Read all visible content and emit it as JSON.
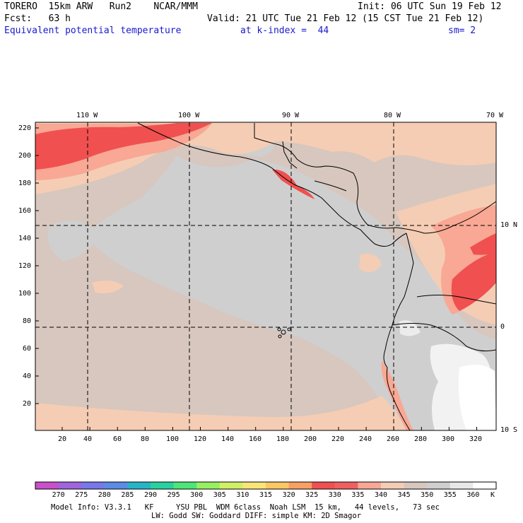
{
  "header": {
    "model": "TORERO  15km ARW   Run2    NCAR/MMM",
    "init": "Init: 06 UTC Sun 19 Feb 12",
    "fcst": "Fcst:   63 h",
    "valid": "Valid: 21 UTC Tue 21 Feb 12 (15 CST Tue 21 Feb 12)",
    "field": "Equivalent potential temperature",
    "level": "at k-index =  44",
    "smooth": "sm= 2"
  },
  "map": {
    "lon_labels": [
      "110 W",
      "100 W",
      "90 W",
      "80 W",
      "70 W"
    ],
    "lat_labels": [
      "10 N",
      "0",
      "10 S"
    ],
    "x_ticks": [
      "20",
      "40",
      "60",
      "80",
      "100",
      "120",
      "140",
      "160",
      "180",
      "200",
      "220",
      "240",
      "260",
      "280",
      "300",
      "320"
    ],
    "y_ticks": [
      "220",
      "200",
      "180",
      "160",
      "140",
      "120",
      "100",
      "80",
      "60",
      "40",
      "20"
    ]
  },
  "colorbar": {
    "levels": [
      "270",
      "275",
      "280",
      "285",
      "290",
      "295",
      "300",
      "305",
      "310",
      "315",
      "320",
      "325",
      "330",
      "335",
      "340",
      "345",
      "350",
      "355",
      "360"
    ],
    "unit": "K",
    "colors": [
      "#c850c8",
      "#a064dc",
      "#7878ec",
      "#5a8ce6",
      "#28b4c8",
      "#28d2a0",
      "#4ee678",
      "#96f060",
      "#d2f064",
      "#fae678",
      "#fac864",
      "#f8a064",
      "#f05050",
      "#f06060",
      "#f8a894",
      "#f5cdb4",
      "#d7c7be",
      "#cfcfcf",
      "#e8e8e8",
      "#ffffff"
    ]
  },
  "footer": {
    "line1": "Model Info: V3.3.1   KF     YSU PBL  WDM 6class  Noah LSM  15 km,   44 levels,   73 sec",
    "line2": "LW: Godd SW: Goddard DIFF: simple KM: 2D Smagor"
  }
}
